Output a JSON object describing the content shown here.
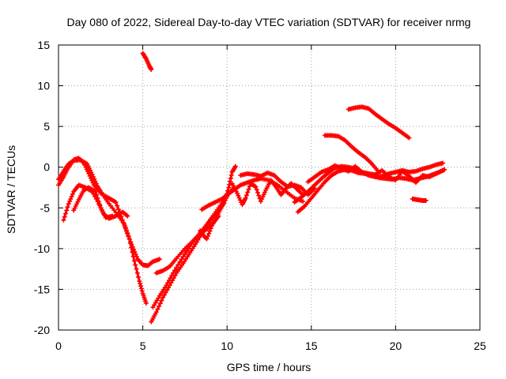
{
  "chart_data": {
    "type": "scatter",
    "title": "Day 080 of 2022, Sidereal Day-to-day VTEC variation (SDTVAR) for receiver nrmg",
    "xlabel": "GPS time / hours",
    "ylabel": "SDTVAR / TECUs",
    "xlim": [
      0,
      25
    ],
    "ylim": [
      -20,
      15
    ],
    "xticks": [
      0,
      5,
      10,
      15,
      20,
      25
    ],
    "yticks": [
      -20,
      -15,
      -10,
      -5,
      0,
      5,
      10,
      15
    ],
    "grid": true,
    "series_color": "#ff0000",
    "series": [
      {
        "points": [
          [
            5.0,
            14
          ],
          [
            5.2,
            13.3
          ],
          [
            5.4,
            12.4
          ],
          [
            5.5,
            12.0
          ]
        ]
      },
      {
        "points": [
          [
            0.0,
            -2.2
          ],
          [
            0.3,
            -1.2
          ],
          [
            0.6,
            0.0
          ],
          [
            0.9,
            0.9
          ],
          [
            1.2,
            1.1
          ],
          [
            1.5,
            0.5
          ],
          [
            1.8,
            -0.8
          ],
          [
            2.1,
            -2.2
          ],
          [
            2.5,
            -3.2
          ],
          [
            3.0,
            -3.8
          ],
          [
            3.4,
            -4.3
          ],
          [
            3.8,
            -6.5
          ],
          [
            4.1,
            -8.2
          ],
          [
            4.4,
            -9.8
          ],
          [
            4.7,
            -11.3
          ],
          [
            5.0,
            -12.0
          ],
          [
            5.3,
            -12.1
          ],
          [
            5.6,
            -11.6
          ],
          [
            6.0,
            -11.3
          ]
        ]
      },
      {
        "points": [
          [
            0.0,
            -1.5
          ],
          [
            0.3,
            -0.5
          ],
          [
            0.6,
            0.4
          ],
          [
            0.9,
            0.8
          ],
          [
            1.3,
            0.9
          ],
          [
            1.7,
            0.4
          ],
          [
            2.0,
            -0.9
          ],
          [
            2.3,
            -2.3
          ],
          [
            2.6,
            -3.3
          ],
          [
            3.0,
            -4.5
          ],
          [
            3.5,
            -5.8
          ],
          [
            3.9,
            -7.0
          ],
          [
            4.2,
            -8.8
          ],
          [
            4.5,
            -11.5
          ],
          [
            4.8,
            -14.0
          ],
          [
            5.0,
            -15.5
          ],
          [
            5.2,
            -16.7
          ]
        ]
      },
      {
        "points": [
          [
            0.3,
            -6.5
          ],
          [
            0.6,
            -4.5
          ],
          [
            0.9,
            -3.0
          ],
          [
            1.2,
            -2.2
          ],
          [
            1.6,
            -2.5
          ],
          [
            2.0,
            -3.0
          ],
          [
            2.4,
            -4.5
          ],
          [
            2.7,
            -5.8
          ],
          [
            3.0,
            -6.3
          ],
          [
            3.4,
            -6.0
          ],
          [
            3.8,
            -5.5
          ],
          [
            4.1,
            -6.0
          ]
        ]
      },
      {
        "points": [
          [
            0.9,
            -5.3
          ],
          [
            1.2,
            -4.0
          ],
          [
            1.5,
            -2.8
          ],
          [
            1.8,
            -2.5
          ],
          [
            2.2,
            -3.0
          ],
          [
            2.5,
            -5.0
          ],
          [
            2.8,
            -6.2
          ],
          [
            3.2,
            -6.0
          ]
        ]
      },
      {
        "points": [
          [
            5.5,
            -19.0
          ],
          [
            5.8,
            -17.8
          ],
          [
            6.2,
            -16.0
          ],
          [
            6.6,
            -14.5
          ],
          [
            7.0,
            -13.0
          ],
          [
            7.4,
            -11.8
          ],
          [
            7.8,
            -10.5
          ],
          [
            8.2,
            -9.2
          ],
          [
            8.6,
            -7.8
          ],
          [
            9.0,
            -6.5
          ],
          [
            9.4,
            -5.5
          ],
          [
            9.8,
            -4.5
          ],
          [
            10.1,
            -2.5
          ],
          [
            10.3,
            -0.6
          ],
          [
            10.5,
            0.1
          ]
        ]
      },
      {
        "points": [
          [
            5.6,
            -17.2
          ],
          [
            6.0,
            -15.8
          ],
          [
            6.4,
            -14.5
          ],
          [
            6.8,
            -13.0
          ],
          [
            7.3,
            -11.3
          ],
          [
            7.8,
            -9.7
          ],
          [
            8.3,
            -8.3
          ],
          [
            8.7,
            -7.3
          ],
          [
            9.1,
            -6.2
          ],
          [
            9.5,
            -5.0
          ],
          [
            10.0,
            -3.5
          ],
          [
            10.4,
            -2.5
          ]
        ]
      },
      {
        "points": [
          [
            5.8,
            -13.0
          ],
          [
            6.2,
            -12.7
          ],
          [
            6.6,
            -12.2
          ],
          [
            7.0,
            -11.2
          ],
          [
            7.5,
            -10.0
          ],
          [
            8.0,
            -9.0
          ],
          [
            8.4,
            -8.2
          ],
          [
            8.8,
            -7.6
          ],
          [
            9.2,
            -6.8
          ],
          [
            9.5,
            -6.0
          ]
        ]
      },
      {
        "points": [
          [
            8.4,
            -7.8
          ],
          [
            8.6,
            -8.4
          ],
          [
            8.8,
            -8.8
          ],
          [
            9.1,
            -7.2
          ],
          [
            9.4,
            -6.0
          ],
          [
            9.7,
            -4.8
          ],
          [
            10.0,
            -3.6
          ]
        ]
      },
      {
        "points": [
          [
            8.5,
            -5.2
          ],
          [
            8.9,
            -4.7
          ],
          [
            9.3,
            -4.3
          ],
          [
            9.7,
            -3.9
          ],
          [
            10.0,
            -3.4
          ],
          [
            10.4,
            -2.8
          ],
          [
            10.8,
            -2.2
          ],
          [
            11.2,
            -1.9
          ],
          [
            11.6,
            -1.6
          ],
          [
            12.0,
            -1.4
          ],
          [
            12.5,
            -1.6
          ],
          [
            13.0,
            -2.2
          ],
          [
            13.5,
            -3.0
          ],
          [
            14.0,
            -3.8
          ],
          [
            14.5,
            -4.2
          ]
        ]
      },
      {
        "points": [
          [
            10.3,
            -2.0
          ],
          [
            10.6,
            -3.2
          ],
          [
            10.9,
            -4.6
          ],
          [
            11.1,
            -3.8
          ],
          [
            11.4,
            -2.0
          ],
          [
            11.7,
            -2.4
          ],
          [
            12.0,
            -4.2
          ],
          [
            12.3,
            -2.8
          ],
          [
            12.6,
            -1.6
          ],
          [
            12.9,
            -2.4
          ],
          [
            13.2,
            -3.4
          ],
          [
            13.5,
            -2.6
          ],
          [
            13.8,
            -2.0
          ],
          [
            14.1,
            -2.6
          ],
          [
            14.4,
            -3.2
          ]
        ]
      },
      {
        "points": [
          [
            10.8,
            -1.0
          ],
          [
            11.2,
            -0.8
          ],
          [
            11.6,
            -0.9
          ],
          [
            12.0,
            -1.1
          ],
          [
            12.4,
            -0.7
          ],
          [
            12.8,
            -1.0
          ],
          [
            13.2,
            -1.8
          ],
          [
            13.6,
            -2.4
          ],
          [
            14.0,
            -2.2
          ],
          [
            14.4,
            -2.5
          ],
          [
            14.8,
            -3.4
          ],
          [
            15.2,
            -2.6
          ]
        ]
      },
      {
        "points": [
          [
            14.2,
            -5.5
          ],
          [
            14.6,
            -4.8
          ],
          [
            15.0,
            -3.8
          ],
          [
            15.4,
            -2.8
          ],
          [
            15.8,
            -1.8
          ],
          [
            16.2,
            -1.0
          ],
          [
            16.6,
            -0.5
          ],
          [
            17.0,
            -0.3
          ],
          [
            17.4,
            -0.4
          ],
          [
            17.8,
            -0.7
          ],
          [
            18.2,
            -0.8
          ],
          [
            18.6,
            -1.0
          ],
          [
            19.0,
            -1.3
          ],
          [
            19.4,
            -1.4
          ],
          [
            19.8,
            -1.5
          ],
          [
            20.2,
            -1.3
          ],
          [
            20.6,
            -1.4
          ],
          [
            21.0,
            -1.6
          ],
          [
            21.4,
            -1.4
          ],
          [
            21.8,
            -1.2
          ],
          [
            22.2,
            -0.9
          ],
          [
            22.6,
            -0.6
          ],
          [
            22.9,
            -0.3
          ]
        ]
      },
      {
        "points": [
          [
            14.0,
            -4.3
          ],
          [
            14.4,
            -3.7
          ],
          [
            14.8,
            -3.0
          ],
          [
            15.2,
            -2.2
          ],
          [
            15.6,
            -1.4
          ],
          [
            16.0,
            -0.7
          ],
          [
            16.4,
            -0.1
          ],
          [
            16.8,
            0.1
          ],
          [
            17.2,
            0.0
          ],
          [
            17.6,
            -0.2
          ],
          [
            18.0,
            -0.6
          ],
          [
            18.4,
            -1.0
          ],
          [
            18.8,
            -1.2
          ],
          [
            19.2,
            -1.1
          ],
          [
            19.6,
            -0.8
          ],
          [
            20.0,
            -0.6
          ],
          [
            20.4,
            -0.4
          ],
          [
            20.8,
            -0.6
          ],
          [
            21.2,
            -0.5
          ],
          [
            21.6,
            -0.2
          ],
          [
            22.0,
            0.0
          ],
          [
            22.4,
            0.3
          ],
          [
            22.8,
            0.5
          ]
        ]
      },
      {
        "points": [
          [
            14.8,
            -1.8
          ],
          [
            15.2,
            -1.2
          ],
          [
            15.6,
            -0.6
          ],
          [
            16.0,
            -0.3
          ],
          [
            16.4,
            0.2
          ],
          [
            16.8,
            -0.2
          ],
          [
            17.2,
            -0.5
          ],
          [
            17.6,
            0.1
          ],
          [
            18.0,
            -0.6
          ],
          [
            18.4,
            -0.8
          ],
          [
            18.8,
            -0.9
          ],
          [
            19.2,
            -0.4
          ],
          [
            19.6,
            -1.2
          ],
          [
            20.0,
            -1.6
          ],
          [
            20.4,
            -0.5
          ],
          [
            20.8,
            -1.1
          ],
          [
            21.2,
            -1.9
          ],
          [
            21.6,
            -1.0
          ],
          [
            22.0,
            -1.2
          ],
          [
            22.4,
            -0.8
          ],
          [
            22.8,
            -0.4
          ]
        ]
      },
      {
        "points": [
          [
            15.8,
            3.9
          ],
          [
            16.2,
            3.9
          ],
          [
            16.6,
            3.8
          ],
          [
            17.0,
            3.3
          ],
          [
            17.4,
            2.5
          ],
          [
            17.8,
            1.8
          ],
          [
            18.2,
            1.2
          ],
          [
            18.6,
            0.4
          ],
          [
            19.0,
            -0.6
          ]
        ]
      },
      {
        "points": [
          [
            17.2,
            7.1
          ],
          [
            17.6,
            7.3
          ],
          [
            18.0,
            7.4
          ],
          [
            18.4,
            7.2
          ],
          [
            18.8,
            6.5
          ],
          [
            19.2,
            5.9
          ],
          [
            19.6,
            5.3
          ],
          [
            20.0,
            4.8
          ],
          [
            20.4,
            4.2
          ],
          [
            20.8,
            3.6
          ]
        ]
      },
      {
        "points": [
          [
            21.0,
            -3.9
          ],
          [
            21.3,
            -4.0
          ],
          [
            21.6,
            -4.1
          ],
          [
            21.8,
            -4.1
          ]
        ]
      }
    ]
  }
}
